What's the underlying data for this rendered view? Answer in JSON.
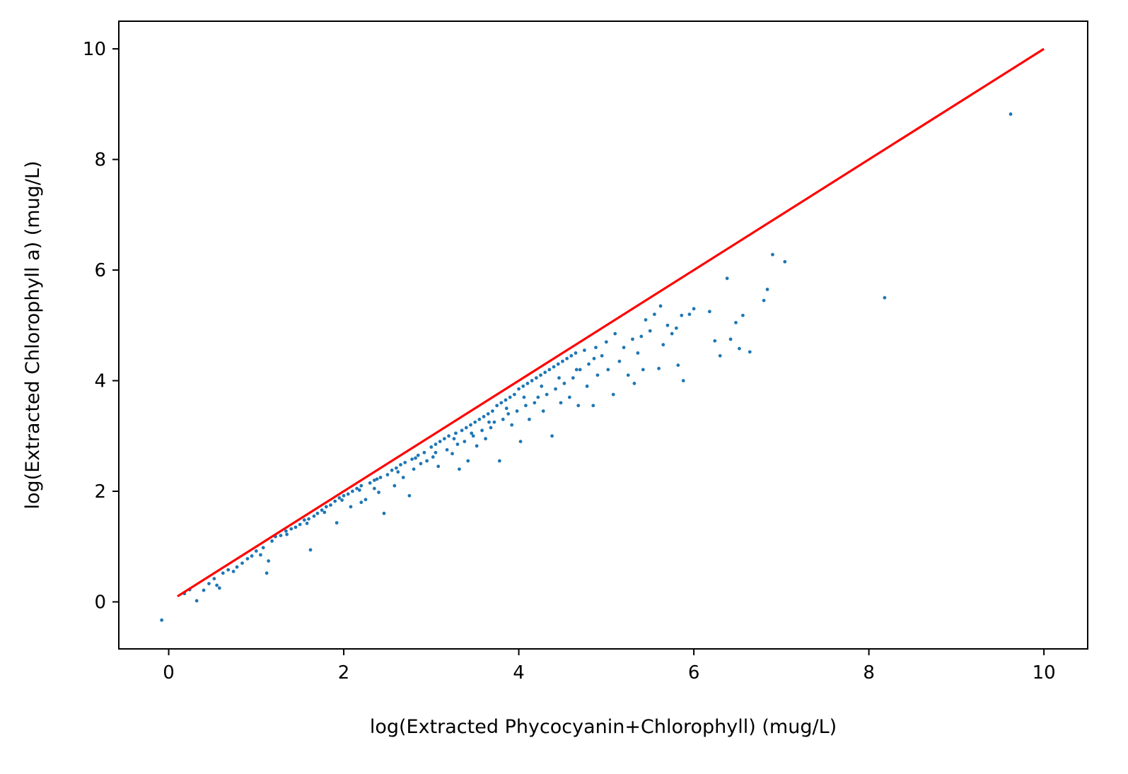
{
  "chart_data": {
    "type": "scatter",
    "xlabel": "log(Extracted Phycocyanin+Chlorophyll) (mug/L)",
    "ylabel": "log(Extracted Chlorophyll a) (mug/L)",
    "xlim": [
      -0.57,
      10.5
    ],
    "ylim": [
      -0.85,
      10.5
    ],
    "xticks": [
      0,
      2,
      4,
      6,
      8,
      10
    ],
    "yticks": [
      0,
      2,
      4,
      6,
      8,
      10
    ],
    "grid": false,
    "legend": "none",
    "series": [
      {
        "type": "scatter",
        "color": "#1f77b4",
        "points": [
          [
            -0.08,
            -0.33
          ],
          [
            0.18,
            0.15
          ],
          [
            0.24,
            0.22
          ],
          [
            0.32,
            0.02
          ],
          [
            0.4,
            0.21
          ],
          [
            0.46,
            0.33
          ],
          [
            0.52,
            0.42
          ],
          [
            0.55,
            0.3
          ],
          [
            0.58,
            0.25
          ],
          [
            0.62,
            0.52
          ],
          [
            0.68,
            0.58
          ],
          [
            0.74,
            0.55
          ],
          [
            0.78,
            0.63
          ],
          [
            0.84,
            0.7
          ],
          [
            0.9,
            0.78
          ],
          [
            0.95,
            0.83
          ],
          [
            1.0,
            0.92
          ],
          [
            1.05,
            0.85
          ],
          [
            1.08,
            0.98
          ],
          [
            1.12,
            0.52
          ],
          [
            1.14,
            0.74
          ],
          [
            1.18,
            1.1
          ],
          [
            1.22,
            1.18
          ],
          [
            1.28,
            1.2
          ],
          [
            1.34,
            1.28
          ],
          [
            1.4,
            1.32
          ],
          [
            1.45,
            1.35
          ],
          [
            1.5,
            1.4
          ],
          [
            1.55,
            1.48
          ],
          [
            1.6,
            1.5
          ],
          [
            1.62,
            0.94
          ],
          [
            1.66,
            1.55
          ],
          [
            1.7,
            1.6
          ],
          [
            1.75,
            1.66
          ],
          [
            1.8,
            1.72
          ],
          [
            1.85,
            1.75
          ],
          [
            1.9,
            1.82
          ],
          [
            1.92,
            1.43
          ],
          [
            1.95,
            1.88
          ],
          [
            2.0,
            1.92
          ],
          [
            2.05,
            1.95
          ],
          [
            2.08,
            1.72
          ],
          [
            2.1,
            2.0
          ],
          [
            2.15,
            2.05
          ],
          [
            2.2,
            2.1
          ],
          [
            2.25,
            1.85
          ],
          [
            2.3,
            2.15
          ],
          [
            2.35,
            2.2
          ],
          [
            2.4,
            1.98
          ],
          [
            2.42,
            2.25
          ],
          [
            2.46,
            1.6
          ],
          [
            2.5,
            2.3
          ],
          [
            2.55,
            2.38
          ],
          [
            2.58,
            2.1
          ],
          [
            2.6,
            2.42
          ],
          [
            2.65,
            2.48
          ],
          [
            2.68,
            2.25
          ],
          [
            2.7,
            2.52
          ],
          [
            2.75,
            1.92
          ],
          [
            2.78,
            2.58
          ],
          [
            2.8,
            2.4
          ],
          [
            2.85,
            2.65
          ],
          [
            2.88,
            2.5
          ],
          [
            2.92,
            2.7
          ],
          [
            2.95,
            2.55
          ],
          [
            3.0,
            2.8
          ],
          [
            3.02,
            2.62
          ],
          [
            3.05,
            2.85
          ],
          [
            3.08,
            2.45
          ],
          [
            3.1,
            2.9
          ],
          [
            3.15,
            2.95
          ],
          [
            3.18,
            2.75
          ],
          [
            3.2,
            3.0
          ],
          [
            3.24,
            2.68
          ],
          [
            3.28,
            3.05
          ],
          [
            3.3,
            2.85
          ],
          [
            3.32,
            2.4
          ],
          [
            3.35,
            3.1
          ],
          [
            3.38,
            2.9
          ],
          [
            3.4,
            3.15
          ],
          [
            3.42,
            2.55
          ],
          [
            3.45,
            3.2
          ],
          [
            3.48,
            3.0
          ],
          [
            3.5,
            3.25
          ],
          [
            3.52,
            2.82
          ],
          [
            3.55,
            3.3
          ],
          [
            3.58,
            3.1
          ],
          [
            3.6,
            3.35
          ],
          [
            3.62,
            2.95
          ],
          [
            3.65,
            3.4
          ],
          [
            3.68,
            3.15
          ],
          [
            3.7,
            3.45
          ],
          [
            3.72,
            3.25
          ],
          [
            3.75,
            3.55
          ],
          [
            3.78,
            2.55
          ],
          [
            3.8,
            3.6
          ],
          [
            3.82,
            3.3
          ],
          [
            3.85,
            3.65
          ],
          [
            3.88,
            3.4
          ],
          [
            3.9,
            3.7
          ],
          [
            3.92,
            3.2
          ],
          [
            3.95,
            3.75
          ],
          [
            3.98,
            3.45
          ],
          [
            4.0,
            3.85
          ],
          [
            4.02,
            2.9
          ],
          [
            4.05,
            3.9
          ],
          [
            4.08,
            3.55
          ],
          [
            4.1,
            3.95
          ],
          [
            4.12,
            3.3
          ],
          [
            4.15,
            4.0
          ],
          [
            4.18,
            3.6
          ],
          [
            4.2,
            4.05
          ],
          [
            4.22,
            3.7
          ],
          [
            4.25,
            4.1
          ],
          [
            4.28,
            3.45
          ],
          [
            4.3,
            4.15
          ],
          [
            4.32,
            3.75
          ],
          [
            4.35,
            4.2
          ],
          [
            4.38,
            3.0
          ],
          [
            4.4,
            4.25
          ],
          [
            4.42,
            3.85
          ],
          [
            4.45,
            4.3
          ],
          [
            4.48,
            3.6
          ],
          [
            4.5,
            4.35
          ],
          [
            4.52,
            3.95
          ],
          [
            4.55,
            4.4
          ],
          [
            4.58,
            3.7
          ],
          [
            4.6,
            4.45
          ],
          [
            4.62,
            4.05
          ],
          [
            4.65,
            4.5
          ],
          [
            4.68,
            3.55
          ],
          [
            4.7,
            4.2
          ],
          [
            4.75,
            4.55
          ],
          [
            4.78,
            3.9
          ],
          [
            4.8,
            4.3
          ],
          [
            4.85,
            3.55
          ],
          [
            4.88,
            4.6
          ],
          [
            4.9,
            4.1
          ],
          [
            4.95,
            4.45
          ],
          [
            5.0,
            4.7
          ],
          [
            5.02,
            4.2
          ],
          [
            5.08,
            3.75
          ],
          [
            5.1,
            4.85
          ],
          [
            5.15,
            4.35
          ],
          [
            5.2,
            4.6
          ],
          [
            5.25,
            4.1
          ],
          [
            5.3,
            4.75
          ],
          [
            5.32,
            3.95
          ],
          [
            5.36,
            4.5
          ],
          [
            5.4,
            4.8
          ],
          [
            5.42,
            4.2
          ],
          [
            5.45,
            5.1
          ],
          [
            5.5,
            4.9
          ],
          [
            5.55,
            5.2
          ],
          [
            5.6,
            4.22
          ],
          [
            5.62,
            5.35
          ],
          [
            5.65,
            4.65
          ],
          [
            5.7,
            5.0
          ],
          [
            5.75,
            4.85
          ],
          [
            5.8,
            4.95
          ],
          [
            5.82,
            4.28
          ],
          [
            5.86,
            5.18
          ],
          [
            5.88,
            4.0
          ],
          [
            5.95,
            5.2
          ],
          [
            6.0,
            5.3
          ],
          [
            6.18,
            5.25
          ],
          [
            6.24,
            4.72
          ],
          [
            6.3,
            4.45
          ],
          [
            6.38,
            5.85
          ],
          [
            6.42,
            4.75
          ],
          [
            6.48,
            5.05
          ],
          [
            6.52,
            4.58
          ],
          [
            6.56,
            5.18
          ],
          [
            6.64,
            4.52
          ],
          [
            6.8,
            5.45
          ],
          [
            6.84,
            5.65
          ],
          [
            6.9,
            6.28
          ],
          [
            7.04,
            6.15
          ],
          [
            8.18,
            5.5
          ],
          [
            9.62,
            8.82
          ],
          [
            2.2,
            1.8
          ],
          [
            2.35,
            2.05
          ],
          [
            2.62,
            2.35
          ],
          [
            2.82,
            2.6
          ],
          [
            3.05,
            2.7
          ],
          [
            3.26,
            2.95
          ],
          [
            3.46,
            3.05
          ],
          [
            3.66,
            3.25
          ],
          [
            3.86,
            3.5
          ],
          [
            4.06,
            3.7
          ],
          [
            4.26,
            3.9
          ],
          [
            4.46,
            4.05
          ],
          [
            4.66,
            4.2
          ],
          [
            4.86,
            4.4
          ],
          [
            1.35,
            1.22
          ],
          [
            1.58,
            1.42
          ],
          [
            1.78,
            1.62
          ],
          [
            1.98,
            1.84
          ],
          [
            2.18,
            2.02
          ],
          [
            2.38,
            2.22
          ]
        ]
      },
      {
        "type": "line",
        "color": "#ff0000",
        "points": [
          [
            0.1,
            0.1
          ],
          [
            10.0,
            10.0
          ]
        ]
      }
    ]
  }
}
